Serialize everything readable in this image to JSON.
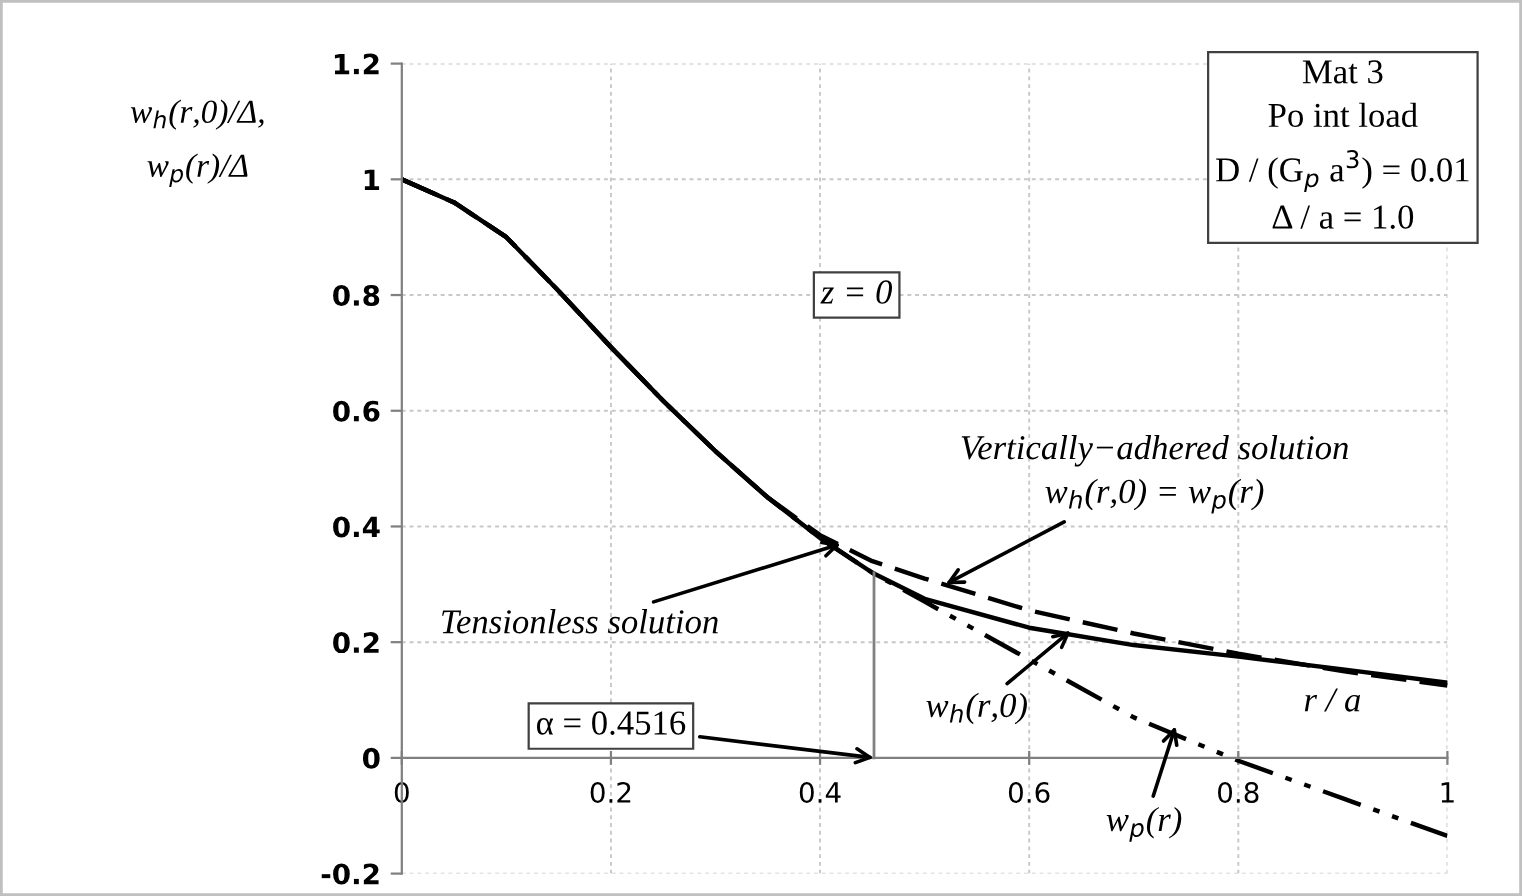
{
  "chart_data": {
    "type": "line",
    "ylabel": "w$_{h}$(r,0)/Δ,\nw$_{p}$(r)/Δ",
    "x": [
      0,
      0.05,
      0.1,
      0.15,
      0.2,
      0.25,
      0.3,
      0.35,
      0.4,
      0.45,
      0.5,
      0.6,
      0.7,
      0.8,
      0.9,
      1.0
    ],
    "series": [
      {
        "color": "#000000",
        "line_style": "solid",
        "values": [
          1,
          0.96,
          0.9,
          0.807,
          0.71,
          0.617,
          0.53,
          0.45,
          0.38,
          0.32,
          0.275,
          0.225,
          0.195,
          0.175,
          0.153,
          0.13
        ]
      },
      {
        "color": "#000000",
        "line_style": "dashed",
        "values": [
          1,
          0.96,
          0.9,
          0.807,
          0.71,
          0.617,
          0.53,
          0.45,
          0.385,
          0.34,
          0.31,
          0.255,
          0.215,
          0.18,
          0.15,
          0.125
        ]
      },
      {
        "color": "#000000",
        "line_style": "dashdot",
        "values": [
          1,
          0.96,
          0.9,
          0.807,
          0.71,
          0.617,
          0.53,
          0.45,
          0.38,
          0.32,
          0.27,
          0.17,
          0.07,
          -0.005,
          -0.07,
          -0.135
        ]
      },
      {
        "color": "#808080",
        "line_style": "solid",
        "x": [
          0.4516,
          0.4516
        ],
        "values": [
          0,
          0.32
        ]
      }
    ],
    "xlim": [
      0,
      1
    ],
    "xticks": [
      0,
      0.2,
      0.4,
      0.6,
      0.8,
      1
    ],
    "ylim": [
      -0.2,
      1.2
    ],
    "yticks": [
      -0.2,
      0,
      0.2,
      0.4,
      0.6,
      0.8,
      1,
      1.2
    ],
    "grid": true,
    "annotations": [
      {
        "text": "Tensionless solution",
        "x": 0.42,
        "y": 0.37
      },
      {
        "text": "Vertically−adhered solution\nw$_{h}$(r,0) = w$_{p}$(r)",
        "x": 0.52,
        "y": 0.3
      },
      {
        "text": "w$_{h}$(r,0)",
        "x": 0.64,
        "y": 0.22
      },
      {
        "text": "w$_{p}$(r)",
        "x": 0.74,
        "y": 0.055
      },
      {
        "text": "α = 0.4516",
        "x": 0.4516,
        "y": 0
      },
      "r / a",
      "z = 0",
      "Mat 3\nPo int load\nD / (G$_{p}$ a$^{3}$) = 0.01\nΔ / a = 1.0"
    ]
  }
}
